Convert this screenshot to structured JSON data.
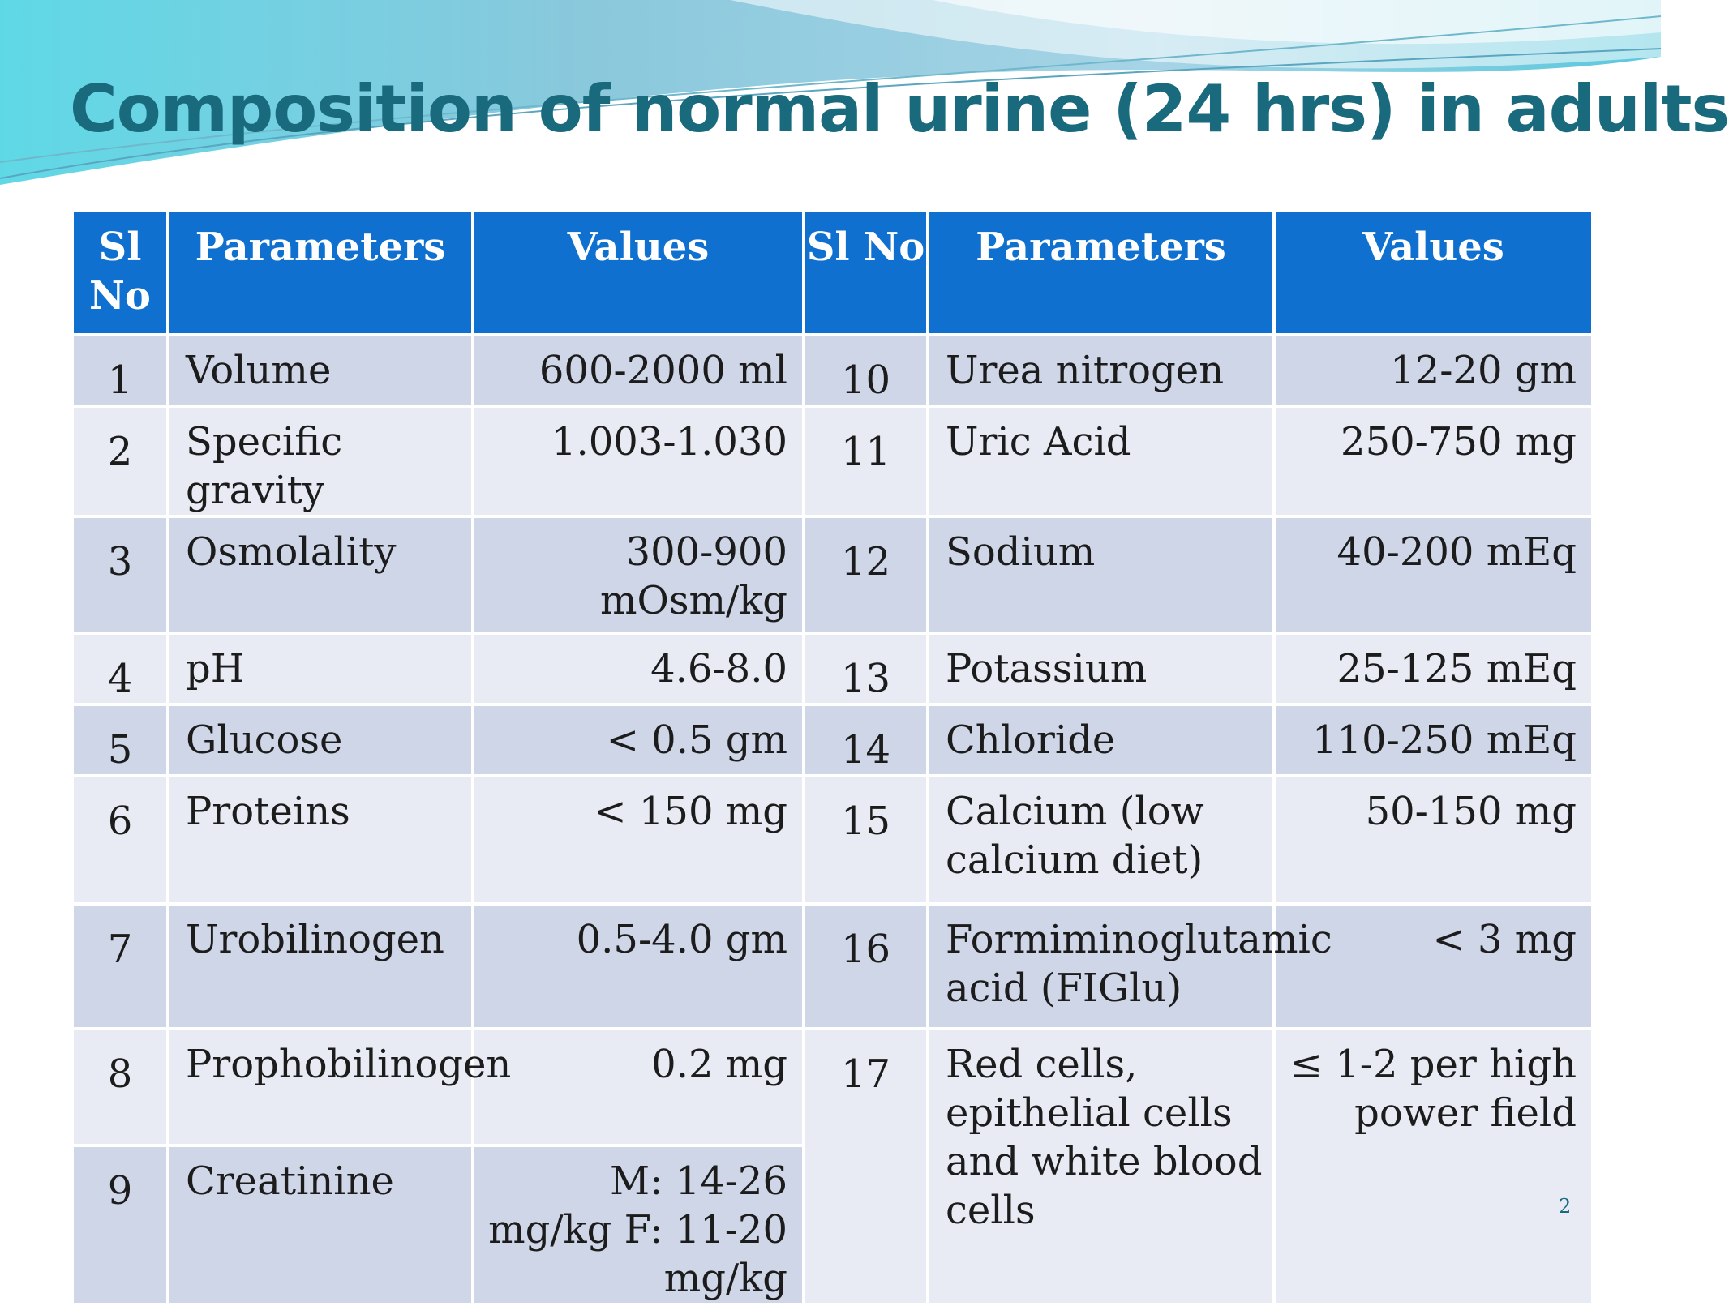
{
  "slide": {
    "title": "Composition of normal urine (24 hrs) in adults",
    "page_number": "2"
  },
  "table": {
    "headers": [
      "Sl No",
      "Parameters",
      "Values",
      "Sl No",
      "Parameters",
      "Values"
    ],
    "rows": [
      {
        "sl": "1",
        "param": "Volume",
        "value": "600-2000 ml",
        "sl2": "10",
        "param2": "Urea nitrogen",
        "value2": "12-20 gm"
      },
      {
        "sl": "2",
        "param": "Specific gravity",
        "value": "1.003-1.030",
        "sl2": "11",
        "param2": "Uric Acid",
        "value2": "250-750 mg"
      },
      {
        "sl": "3",
        "param": "Osmolality",
        "value": "300-900 mOsm/kg",
        "sl2": "12",
        "param2": "Sodium",
        "value2": "40-200 mEq"
      },
      {
        "sl": "4",
        "param": "pH",
        "value": "4.6-8.0",
        "sl2": "13",
        "param2": "Potassium",
        "value2": "25-125 mEq"
      },
      {
        "sl": "5",
        "param": "Glucose",
        "value": "< 0.5 gm",
        "sl2": "14",
        "param2": "Chloride",
        "value2": "110-250 mEq"
      },
      {
        "sl": "6",
        "param": "Proteins",
        "value": "< 150 mg",
        "sl2": "15",
        "param2": "Calcium (low calcium diet)",
        "value2": "50-150 mg"
      },
      {
        "sl": "7",
        "param": "Urobilinogen",
        "value": "0.5-4.0 gm",
        "sl2": "16",
        "param2": "Formiminoglutamic acid (FIGlu)",
        "value2": "< 3 mg"
      },
      {
        "sl": "8",
        "param": "Prophobilinogen",
        "value": "0.2 mg",
        "sl2": "17",
        "param2": "Red cells, epithelial cells and white blood cells",
        "value2": "≤ 1-2 per high power field"
      },
      {
        "sl": "9",
        "param": "Creatinine",
        "value": "M: 14-26 mg/kg F: 11-20 mg/kg"
      }
    ]
  }
}
